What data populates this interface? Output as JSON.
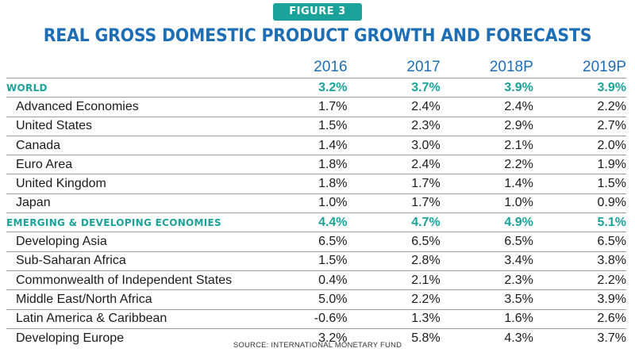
{
  "figure_label": "FIGURE 3",
  "chart_data": {
    "type": "table",
    "title": "REAL GROSS DOMESTIC PRODUCT GROWTH AND FORECASTS",
    "columns": [
      "2016",
      "2017",
      "2018P",
      "2019P"
    ],
    "rows": [
      {
        "label": "WORLD",
        "group": true,
        "values": [
          "3.2%",
          "3.7%",
          "3.9%",
          "3.9%"
        ]
      },
      {
        "label": "Advanced Economies",
        "group": false,
        "values": [
          "1.7%",
          "2.4%",
          "2.4%",
          "2.2%"
        ]
      },
      {
        "label": "United States",
        "group": false,
        "values": [
          "1.5%",
          "2.3%",
          "2.9%",
          "2.7%"
        ]
      },
      {
        "label": "Canada",
        "group": false,
        "values": [
          "1.4%",
          "3.0%",
          "2.1%",
          "2.0%"
        ]
      },
      {
        "label": "Euro Area",
        "group": false,
        "values": [
          "1.8%",
          "2.4%",
          "2.2%",
          "1.9%"
        ]
      },
      {
        "label": "United Kingdom",
        "group": false,
        "values": [
          "1.8%",
          "1.7%",
          "1.4%",
          "1.5%"
        ]
      },
      {
        "label": "Japan",
        "group": false,
        "values": [
          "1.0%",
          "1.7%",
          "1.0%",
          "0.9%"
        ]
      },
      {
        "label": "EMERGING & DEVELOPING ECONOMIES",
        "group": true,
        "values": [
          "4.4%",
          "4.7%",
          "4.9%",
          "5.1%"
        ]
      },
      {
        "label": "Developing Asia",
        "group": false,
        "values": [
          "6.5%",
          "6.5%",
          "6.5%",
          "6.5%"
        ]
      },
      {
        "label": "Sub-Saharan Africa",
        "group": false,
        "values": [
          "1.5%",
          "2.8%",
          "3.4%",
          "3.8%"
        ]
      },
      {
        "label": "Commonwealth of Independent States",
        "group": false,
        "values": [
          "0.4%",
          "2.1%",
          "2.3%",
          "2.2%"
        ]
      },
      {
        "label": "Middle East/North Africa",
        "group": false,
        "values": [
          "5.0%",
          "2.2%",
          "3.5%",
          "3.9%"
        ]
      },
      {
        "label": "Latin America & Caribbean",
        "group": false,
        "values": [
          "-0.6%",
          "1.3%",
          "1.6%",
          "2.6%"
        ]
      },
      {
        "label": "Developing Europe",
        "group": false,
        "values": [
          "3.2%",
          "5.8%",
          "4.3%",
          "3.7%"
        ]
      }
    ]
  },
  "source": "SOURCE: INTERNATIONAL MONETARY FUND",
  "colors": {
    "accent_teal": "#1aa39a",
    "title_blue": "#1e6eb5"
  }
}
